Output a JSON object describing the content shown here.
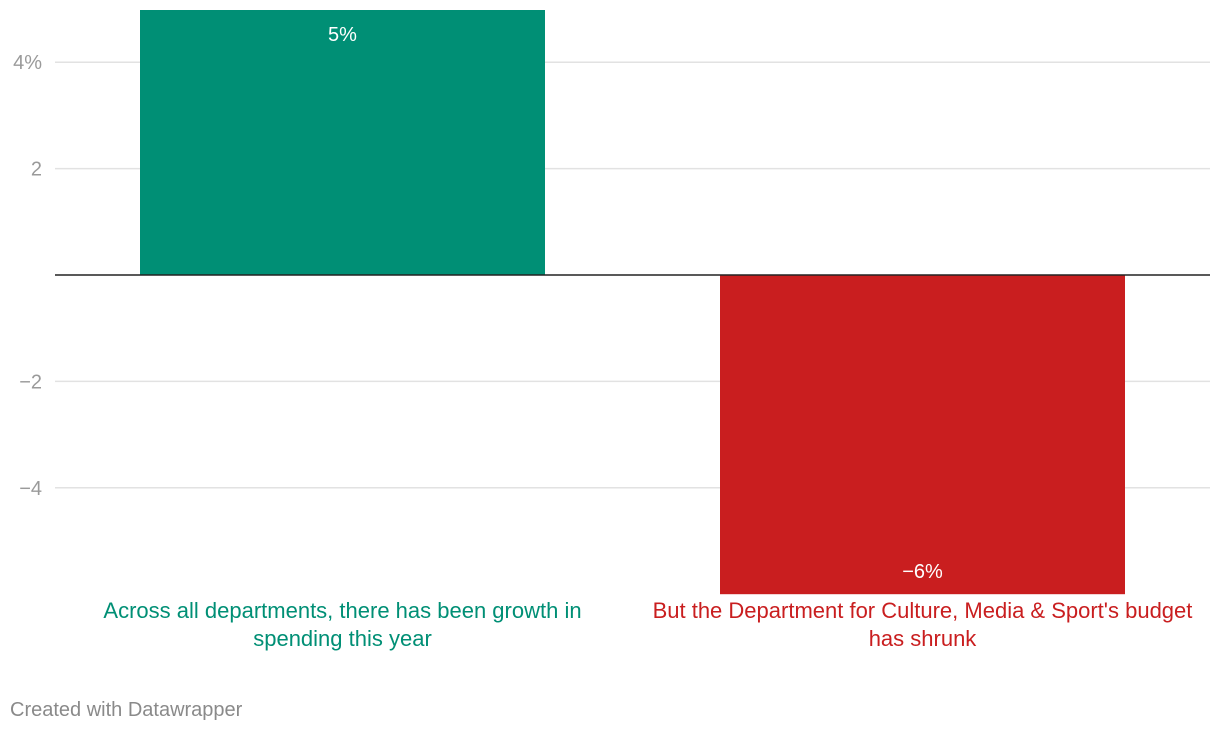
{
  "chart_data": {
    "type": "bar",
    "title": "",
    "xlabel": "",
    "ylabel": "",
    "ylim": [
      -5.9,
      4.97
    ],
    "yticks": [
      {
        "value": 4,
        "label": "4%"
      },
      {
        "value": 2,
        "label": "2"
      },
      {
        "value": -2,
        "label": "−2"
      },
      {
        "value": -4,
        "label": "−4"
      }
    ],
    "bars": [
      {
        "category": "Across all departments, there has been growth in spending this year",
        "value": 5,
        "label": "5%",
        "color": "#008f75"
      },
      {
        "category": "But the Department for Culture, Media & Sport's budget has shrunk",
        "value": -6,
        "label": "−6%",
        "color": "#c91e1f"
      }
    ]
  },
  "credit": "Created with Datawrapper",
  "colors": {
    "grid": "#e2e2e2",
    "zero_line": "#222222",
    "tick_text": "#9a9a9a",
    "credit_text": "#8a8a8a"
  }
}
